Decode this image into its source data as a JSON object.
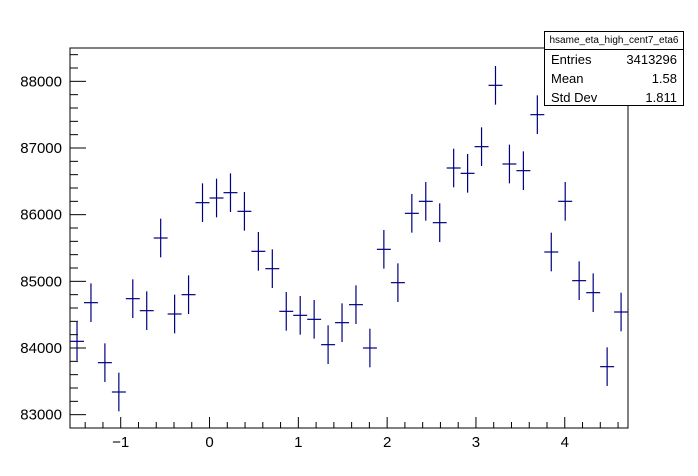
{
  "chart_data": {
    "type": "scatter",
    "style": "errorbar",
    "series_color": "#000080",
    "xlim": [
      -1.571,
      4.712
    ],
    "ylim": [
      82800,
      88500
    ],
    "x_ticks": [
      -1,
      0,
      1,
      2,
      3,
      4
    ],
    "x_tick_labels": [
      "−1",
      "0",
      "1",
      "2",
      "3",
      "4"
    ],
    "y_ticks": [
      83000,
      84000,
      85000,
      86000,
      87000,
      88000
    ],
    "y_tick_labels": [
      "83000",
      "84000",
      "85000",
      "86000",
      "87000",
      "88000"
    ],
    "grid": false,
    "bin_width": 0.1571,
    "points": [
      {
        "x": -1.492,
        "y": 84100,
        "err": 290
      },
      {
        "x": -1.335,
        "y": 84680,
        "err": 290
      },
      {
        "x": -1.178,
        "y": 83780,
        "err": 290
      },
      {
        "x": -1.021,
        "y": 83340,
        "err": 290
      },
      {
        "x": -0.864,
        "y": 84740,
        "err": 290
      },
      {
        "x": -0.707,
        "y": 84560,
        "err": 290
      },
      {
        "x": -0.55,
        "y": 85650,
        "err": 290
      },
      {
        "x": -0.393,
        "y": 84510,
        "err": 290
      },
      {
        "x": -0.236,
        "y": 84800,
        "err": 290
      },
      {
        "x": -0.079,
        "y": 86180,
        "err": 290
      },
      {
        "x": 0.079,
        "y": 86250,
        "err": 290
      },
      {
        "x": 0.236,
        "y": 86330,
        "err": 290
      },
      {
        "x": 0.393,
        "y": 86050,
        "err": 290
      },
      {
        "x": 0.55,
        "y": 85450,
        "err": 290
      },
      {
        "x": 0.707,
        "y": 85190,
        "err": 290
      },
      {
        "x": 0.864,
        "y": 84550,
        "err": 290
      },
      {
        "x": 1.021,
        "y": 84490,
        "err": 290
      },
      {
        "x": 1.178,
        "y": 84430,
        "err": 290
      },
      {
        "x": 1.335,
        "y": 84050,
        "err": 290
      },
      {
        "x": 1.492,
        "y": 84380,
        "err": 290
      },
      {
        "x": 1.649,
        "y": 84650,
        "err": 290
      },
      {
        "x": 1.806,
        "y": 84000,
        "err": 290
      },
      {
        "x": 1.963,
        "y": 85480,
        "err": 290
      },
      {
        "x": 2.121,
        "y": 84980,
        "err": 290
      },
      {
        "x": 2.278,
        "y": 86020,
        "err": 290
      },
      {
        "x": 2.435,
        "y": 86200,
        "err": 290
      },
      {
        "x": 2.592,
        "y": 85880,
        "err": 290
      },
      {
        "x": 2.749,
        "y": 86700,
        "err": 290
      },
      {
        "x": 2.906,
        "y": 86620,
        "err": 290
      },
      {
        "x": 3.063,
        "y": 87020,
        "err": 290
      },
      {
        "x": 3.22,
        "y": 87940,
        "err": 290
      },
      {
        "x": 3.377,
        "y": 86760,
        "err": 290
      },
      {
        "x": 3.534,
        "y": 86660,
        "err": 290
      },
      {
        "x": 3.691,
        "y": 87500,
        "err": 290
      },
      {
        "x": 3.848,
        "y": 85440,
        "err": 290
      },
      {
        "x": 4.005,
        "y": 86200,
        "err": 290
      },
      {
        "x": 4.162,
        "y": 85010,
        "err": 290
      },
      {
        "x": 4.32,
        "y": 84830,
        "err": 290
      },
      {
        "x": 4.477,
        "y": 83720,
        "err": 290
      },
      {
        "x": 4.634,
        "y": 84540,
        "err": 290
      }
    ]
  },
  "stats": {
    "title": "hsame_eta_high_cent7_eta6",
    "rows": [
      {
        "label": "Entries",
        "value": "3413296"
      },
      {
        "label": "Mean",
        "value": "1.58"
      },
      {
        "label": "Std Dev",
        "value": "1.811"
      }
    ]
  }
}
